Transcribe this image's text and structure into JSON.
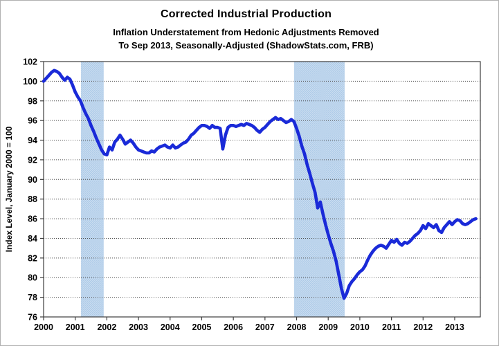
{
  "figure": {
    "title": "Corrected Industrial Production",
    "subtitle1": "Inflation Understatement from Hedonic Adjustments Removed",
    "subtitle2": "To Sep 2013, Seasonally-Adjusted (ShadowStats.com, FRB)"
  },
  "chart_data": {
    "type": "line",
    "title": "Corrected Industrial Production",
    "xlabel": "",
    "ylabel": "Index Level, January 2000 = 100",
    "ylim": [
      76,
      102
    ],
    "xlim": [
      2000,
      2013.81
    ],
    "grid": true,
    "legend": "none",
    "yticks": [
      76,
      78,
      80,
      82,
      84,
      86,
      88,
      90,
      92,
      94,
      96,
      98,
      100,
      102
    ],
    "xticks": [
      2000,
      2001,
      2002,
      2003,
      2004,
      2005,
      2006,
      2007,
      2008,
      2009,
      2010,
      2011,
      2012,
      2013
    ],
    "line_color": "#1a2ad8",
    "band_color": "#c9dcf0",
    "band_dot_color": "#aecbe8",
    "grid_color": "#4d4d4d",
    "frame_color": "#3c3c3c",
    "recession_bands": [
      {
        "from": 2001.18,
        "to": 2001.9
      },
      {
        "from": 2007.92,
        "to": 2009.52
      }
    ],
    "series": [
      {
        "name": "Corrected Industrial Production Index",
        "frequency": "monthly",
        "start_year": 2000,
        "start_month": "Jan",
        "end_label": "Sep 2013",
        "values": [
          100.0,
          100.3,
          100.6,
          100.9,
          101.1,
          101.0,
          100.8,
          100.4,
          100.1,
          100.4,
          100.2,
          99.6,
          98.9,
          98.4,
          98.0,
          97.3,
          96.7,
          96.2,
          95.5,
          94.9,
          94.2,
          93.6,
          93.0,
          92.6,
          92.5,
          93.3,
          93.0,
          93.8,
          94.1,
          94.5,
          94.1,
          93.6,
          93.8,
          94.0,
          93.7,
          93.3,
          93.0,
          92.9,
          92.8,
          92.7,
          92.7,
          92.9,
          92.8,
          93.1,
          93.3,
          93.4,
          93.5,
          93.3,
          93.2,
          93.5,
          93.2,
          93.3,
          93.5,
          93.7,
          93.8,
          94.1,
          94.5,
          94.7,
          95.0,
          95.3,
          95.5,
          95.5,
          95.4,
          95.2,
          95.5,
          95.3,
          95.3,
          95.2,
          93.1,
          94.5,
          95.3,
          95.5,
          95.5,
          95.4,
          95.5,
          95.6,
          95.5,
          95.7,
          95.6,
          95.5,
          95.3,
          95.0,
          94.8,
          95.1,
          95.3,
          95.6,
          95.9,
          96.1,
          96.3,
          96.1,
          96.2,
          96.0,
          95.8,
          95.9,
          96.1,
          95.9,
          95.2,
          94.4,
          93.4,
          92.6,
          91.5,
          90.6,
          89.6,
          88.7,
          87.1,
          87.7,
          86.5,
          85.4,
          84.4,
          83.5,
          82.7,
          81.7,
          80.3,
          78.9,
          77.9,
          78.4,
          79.2,
          79.6,
          79.9,
          80.3,
          80.6,
          80.8,
          81.2,
          81.8,
          82.3,
          82.7,
          83.0,
          83.2,
          83.3,
          83.2,
          83.0,
          83.4,
          83.8,
          83.6,
          83.9,
          83.5,
          83.3,
          83.6,
          83.5,
          83.7,
          84.0,
          84.3,
          84.5,
          84.8,
          85.3,
          85.0,
          85.5,
          85.3,
          85.1,
          85.4,
          84.8,
          84.6,
          85.1,
          85.4,
          85.7,
          85.4,
          85.7,
          85.9,
          85.8,
          85.5,
          85.4,
          85.5,
          85.7,
          85.9,
          86.0
        ]
      }
    ]
  }
}
